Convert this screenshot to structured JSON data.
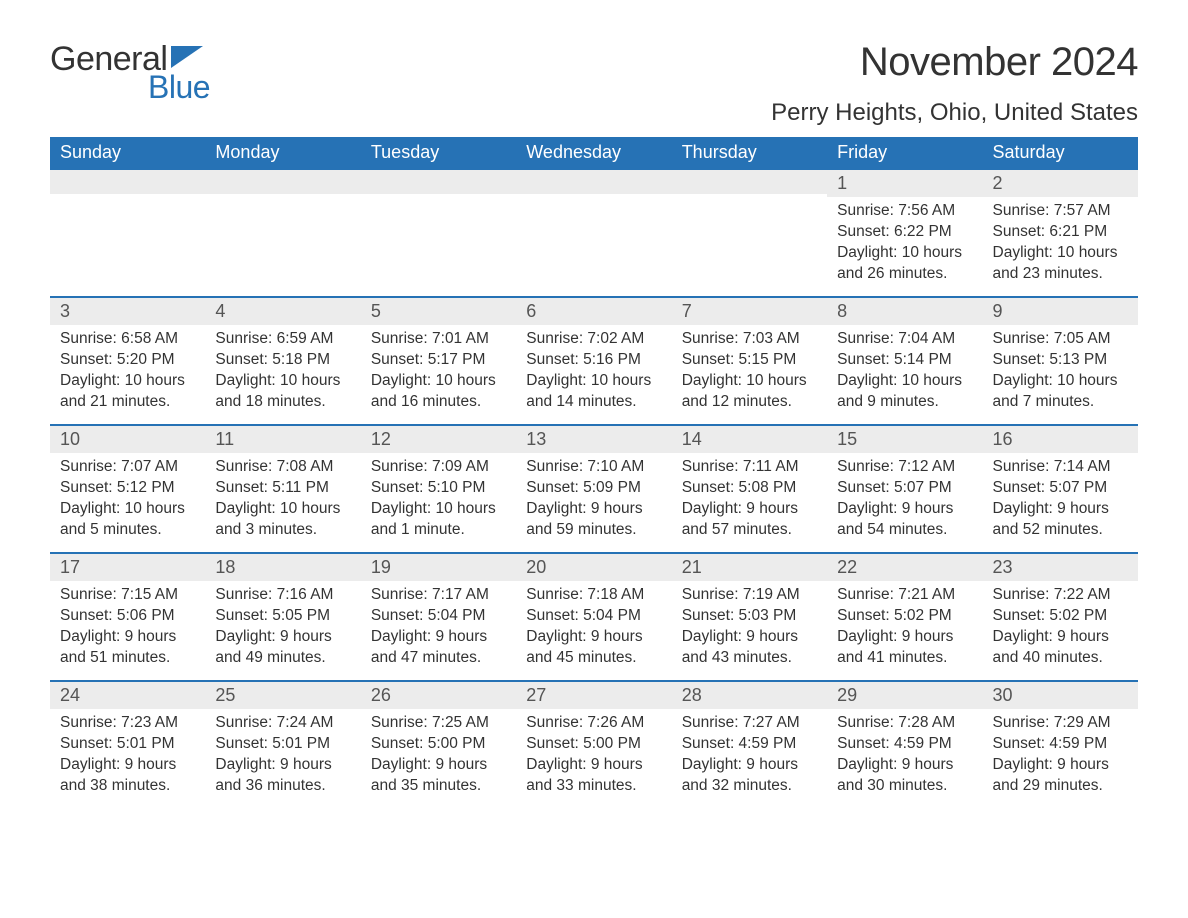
{
  "logo": {
    "text1": "General",
    "text2": "Blue",
    "brand_color": "#2672b5"
  },
  "title": "November 2024",
  "location": "Perry Heights, Ohio, United States",
  "colors": {
    "header_bg": "#2672b5",
    "header_text": "#ffffff",
    "daynum_bg": "#ececec",
    "border_top": "#2672b5",
    "body_text": "#333333"
  },
  "weekdays": [
    "Sunday",
    "Monday",
    "Tuesday",
    "Wednesday",
    "Thursday",
    "Friday",
    "Saturday"
  ],
  "weeks": [
    [
      null,
      null,
      null,
      null,
      null,
      {
        "n": "1",
        "sr": "Sunrise: 7:56 AM",
        "ss": "Sunset: 6:22 PM",
        "d1": "Daylight: 10 hours",
        "d2": "and 26 minutes."
      },
      {
        "n": "2",
        "sr": "Sunrise: 7:57 AM",
        "ss": "Sunset: 6:21 PM",
        "d1": "Daylight: 10 hours",
        "d2": "and 23 minutes."
      }
    ],
    [
      {
        "n": "3",
        "sr": "Sunrise: 6:58 AM",
        "ss": "Sunset: 5:20 PM",
        "d1": "Daylight: 10 hours",
        "d2": "and 21 minutes."
      },
      {
        "n": "4",
        "sr": "Sunrise: 6:59 AM",
        "ss": "Sunset: 5:18 PM",
        "d1": "Daylight: 10 hours",
        "d2": "and 18 minutes."
      },
      {
        "n": "5",
        "sr": "Sunrise: 7:01 AM",
        "ss": "Sunset: 5:17 PM",
        "d1": "Daylight: 10 hours",
        "d2": "and 16 minutes."
      },
      {
        "n": "6",
        "sr": "Sunrise: 7:02 AM",
        "ss": "Sunset: 5:16 PM",
        "d1": "Daylight: 10 hours",
        "d2": "and 14 minutes."
      },
      {
        "n": "7",
        "sr": "Sunrise: 7:03 AM",
        "ss": "Sunset: 5:15 PM",
        "d1": "Daylight: 10 hours",
        "d2": "and 12 minutes."
      },
      {
        "n": "8",
        "sr": "Sunrise: 7:04 AM",
        "ss": "Sunset: 5:14 PM",
        "d1": "Daylight: 10 hours",
        "d2": "and 9 minutes."
      },
      {
        "n": "9",
        "sr": "Sunrise: 7:05 AM",
        "ss": "Sunset: 5:13 PM",
        "d1": "Daylight: 10 hours",
        "d2": "and 7 minutes."
      }
    ],
    [
      {
        "n": "10",
        "sr": "Sunrise: 7:07 AM",
        "ss": "Sunset: 5:12 PM",
        "d1": "Daylight: 10 hours",
        "d2": "and 5 minutes."
      },
      {
        "n": "11",
        "sr": "Sunrise: 7:08 AM",
        "ss": "Sunset: 5:11 PM",
        "d1": "Daylight: 10 hours",
        "d2": "and 3 minutes."
      },
      {
        "n": "12",
        "sr": "Sunrise: 7:09 AM",
        "ss": "Sunset: 5:10 PM",
        "d1": "Daylight: 10 hours",
        "d2": "and 1 minute."
      },
      {
        "n": "13",
        "sr": "Sunrise: 7:10 AM",
        "ss": "Sunset: 5:09 PM",
        "d1": "Daylight: 9 hours",
        "d2": "and 59 minutes."
      },
      {
        "n": "14",
        "sr": "Sunrise: 7:11 AM",
        "ss": "Sunset: 5:08 PM",
        "d1": "Daylight: 9 hours",
        "d2": "and 57 minutes."
      },
      {
        "n": "15",
        "sr": "Sunrise: 7:12 AM",
        "ss": "Sunset: 5:07 PM",
        "d1": "Daylight: 9 hours",
        "d2": "and 54 minutes."
      },
      {
        "n": "16",
        "sr": "Sunrise: 7:14 AM",
        "ss": "Sunset: 5:07 PM",
        "d1": "Daylight: 9 hours",
        "d2": "and 52 minutes."
      }
    ],
    [
      {
        "n": "17",
        "sr": "Sunrise: 7:15 AM",
        "ss": "Sunset: 5:06 PM",
        "d1": "Daylight: 9 hours",
        "d2": "and 51 minutes."
      },
      {
        "n": "18",
        "sr": "Sunrise: 7:16 AM",
        "ss": "Sunset: 5:05 PM",
        "d1": "Daylight: 9 hours",
        "d2": "and 49 minutes."
      },
      {
        "n": "19",
        "sr": "Sunrise: 7:17 AM",
        "ss": "Sunset: 5:04 PM",
        "d1": "Daylight: 9 hours",
        "d2": "and 47 minutes."
      },
      {
        "n": "20",
        "sr": "Sunrise: 7:18 AM",
        "ss": "Sunset: 5:04 PM",
        "d1": "Daylight: 9 hours",
        "d2": "and 45 minutes."
      },
      {
        "n": "21",
        "sr": "Sunrise: 7:19 AM",
        "ss": "Sunset: 5:03 PM",
        "d1": "Daylight: 9 hours",
        "d2": "and 43 minutes."
      },
      {
        "n": "22",
        "sr": "Sunrise: 7:21 AM",
        "ss": "Sunset: 5:02 PM",
        "d1": "Daylight: 9 hours",
        "d2": "and 41 minutes."
      },
      {
        "n": "23",
        "sr": "Sunrise: 7:22 AM",
        "ss": "Sunset: 5:02 PM",
        "d1": "Daylight: 9 hours",
        "d2": "and 40 minutes."
      }
    ],
    [
      {
        "n": "24",
        "sr": "Sunrise: 7:23 AM",
        "ss": "Sunset: 5:01 PM",
        "d1": "Daylight: 9 hours",
        "d2": "and 38 minutes."
      },
      {
        "n": "25",
        "sr": "Sunrise: 7:24 AM",
        "ss": "Sunset: 5:01 PM",
        "d1": "Daylight: 9 hours",
        "d2": "and 36 minutes."
      },
      {
        "n": "26",
        "sr": "Sunrise: 7:25 AM",
        "ss": "Sunset: 5:00 PM",
        "d1": "Daylight: 9 hours",
        "d2": "and 35 minutes."
      },
      {
        "n": "27",
        "sr": "Sunrise: 7:26 AM",
        "ss": "Sunset: 5:00 PM",
        "d1": "Daylight: 9 hours",
        "d2": "and 33 minutes."
      },
      {
        "n": "28",
        "sr": "Sunrise: 7:27 AM",
        "ss": "Sunset: 4:59 PM",
        "d1": "Daylight: 9 hours",
        "d2": "and 32 minutes."
      },
      {
        "n": "29",
        "sr": "Sunrise: 7:28 AM",
        "ss": "Sunset: 4:59 PM",
        "d1": "Daylight: 9 hours",
        "d2": "and 30 minutes."
      },
      {
        "n": "30",
        "sr": "Sunrise: 7:29 AM",
        "ss": "Sunset: 4:59 PM",
        "d1": "Daylight: 9 hours",
        "d2": "and 29 minutes."
      }
    ]
  ]
}
